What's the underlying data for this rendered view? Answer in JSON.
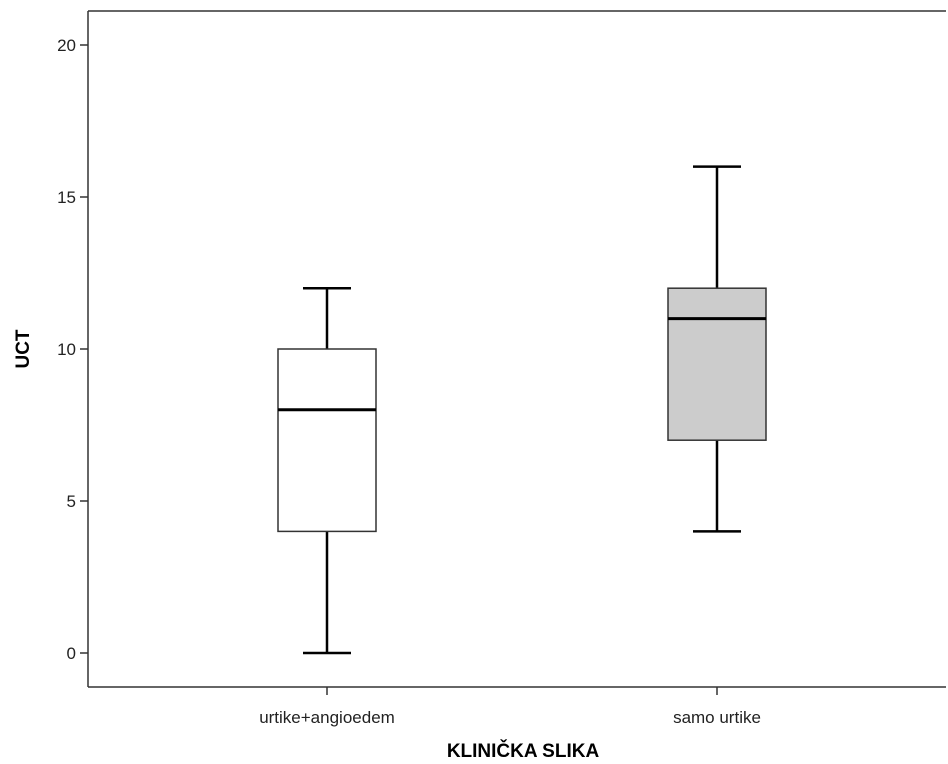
{
  "chart_data": {
    "type": "box",
    "xlabel": "KLINIČKA SLIKA",
    "ylabel": "UCT",
    "ylim": [
      -1.1,
      21.1
    ],
    "yticks": [
      0,
      5,
      10,
      15,
      20
    ],
    "categories": [
      "urtike+angioedem",
      "samo urtike"
    ],
    "boxes": [
      {
        "category": "urtike+angioedem",
        "min": 0,
        "q1": 4,
        "median": 8,
        "q3": 10,
        "max": 12,
        "fill": "#ffffff"
      },
      {
        "category": "samo urtike",
        "min": 4,
        "q1": 7,
        "median": 11,
        "q3": 12,
        "max": 16,
        "fill": "#cccccc"
      }
    ],
    "grid": false,
    "legend": "none"
  }
}
